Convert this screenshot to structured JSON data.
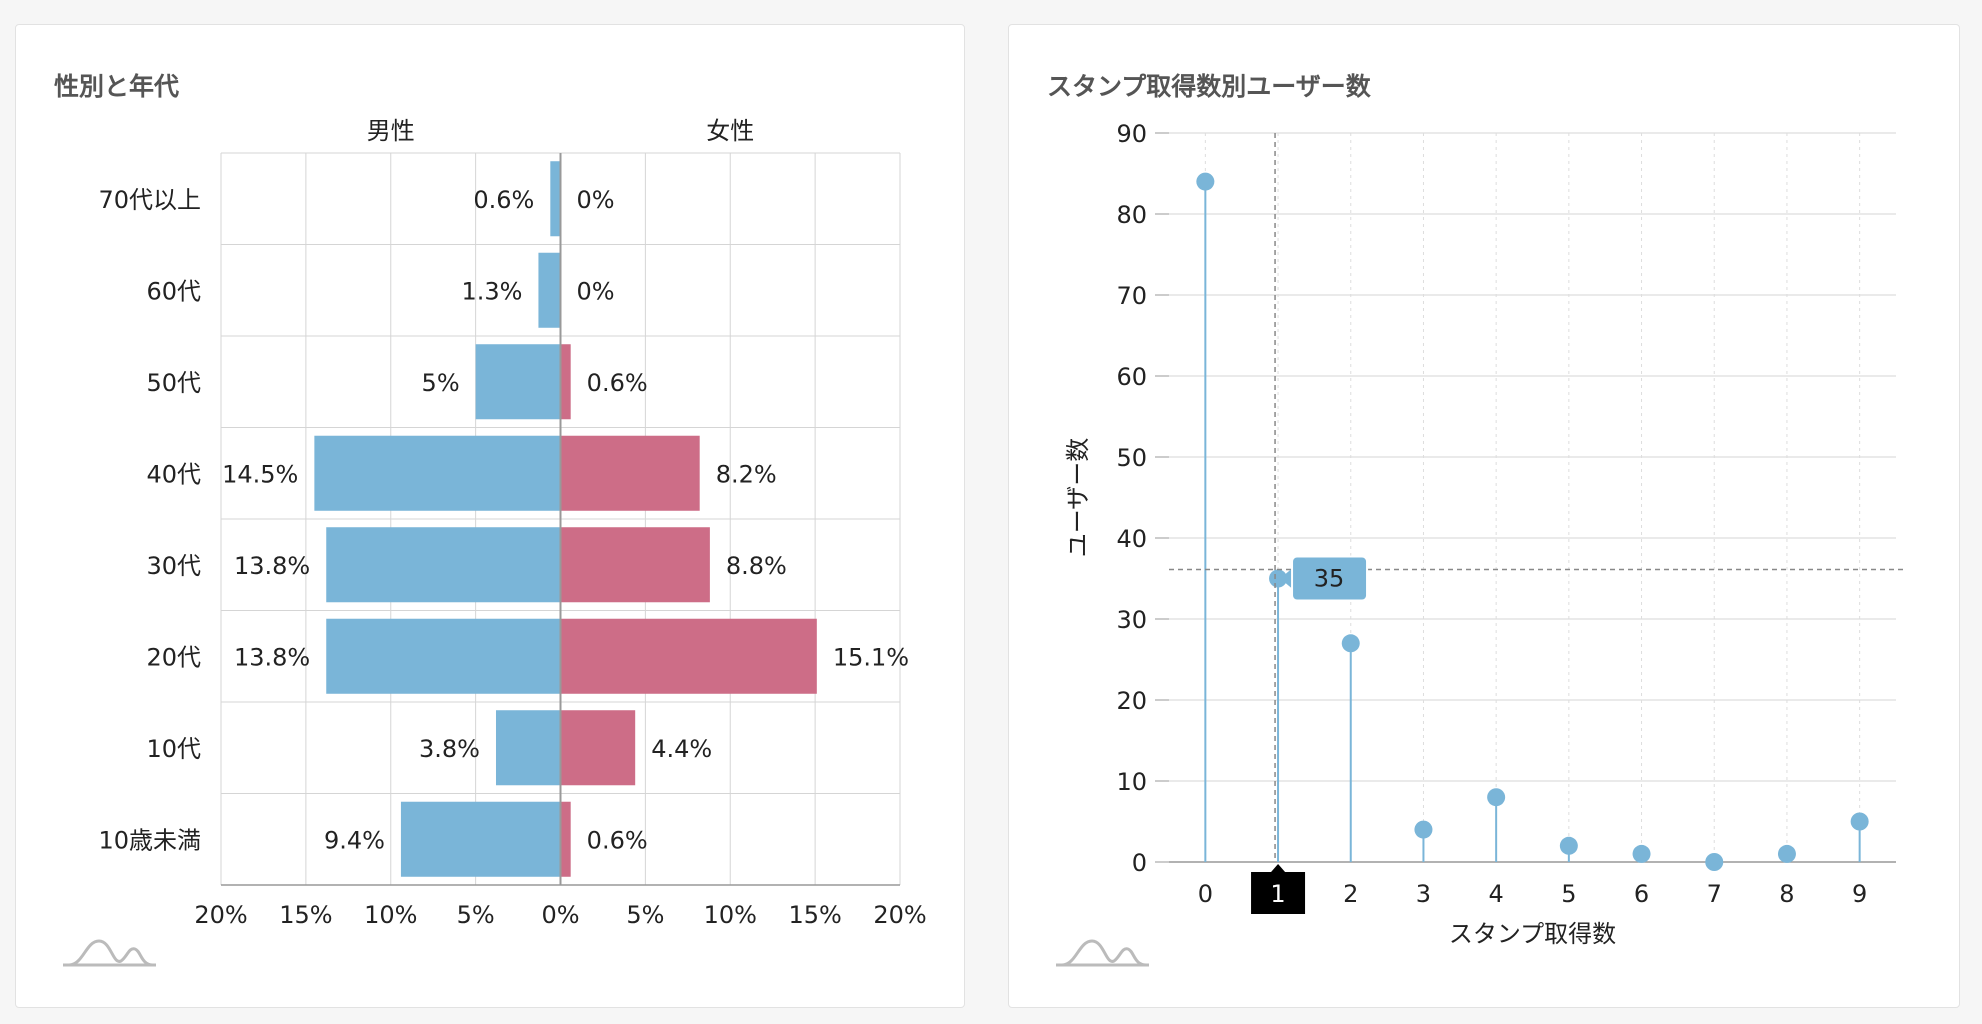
{
  "panels": {
    "left_title": "性別と年代",
    "right_title": "スタンプ取得数別ユーザー数"
  },
  "colors": {
    "male": "#7ab5d8",
    "female": "#cd6d87",
    "stem": "#7ab5d8",
    "tooltip_bg": "#7ab5d8",
    "grid": "#d5d5d5"
  },
  "chart_data": [
    {
      "type": "bar",
      "orientation": "horizontal-pyramid",
      "title": "性別と年代",
      "categories": [
        "70代以上",
        "60代",
        "50代",
        "40代",
        "30代",
        "20代",
        "10代",
        "10歳未満"
      ],
      "series": [
        {
          "name": "男性",
          "values": [
            0.6,
            1.3,
            5,
            14.5,
            13.8,
            13.8,
            3.8,
            9.4
          ],
          "labels": [
            "0.6%",
            "1.3%",
            "5%",
            "14.5%",
            "13.8%",
            "13.8%",
            "3.8%",
            "9.4%"
          ]
        },
        {
          "name": "女性",
          "values": [
            0,
            0,
            0.6,
            8.2,
            8.8,
            15.1,
            4.4,
            0.6
          ],
          "labels": [
            "0%",
            "0%",
            "0.6%",
            "8.2%",
            "8.8%",
            "15.1%",
            "4.4%",
            "0.6%"
          ]
        }
      ],
      "xlim": [
        -20,
        20
      ],
      "xticks": [
        "20%",
        "15%",
        "10%",
        "5%",
        "0%",
        "5%",
        "10%",
        "15%",
        "20%"
      ],
      "grid": true
    },
    {
      "type": "lollipop",
      "title": "スタンプ取得数別ユーザー数",
      "x": [
        0,
        1,
        2,
        3,
        4,
        5,
        6,
        7,
        8,
        9
      ],
      "values": [
        84,
        35,
        27,
        4,
        8,
        2,
        1,
        0,
        1,
        5
      ],
      "xlabel": "スタンプ取得数",
      "ylabel": "ユーザー数",
      "ylim": [
        0,
        90
      ],
      "yticks": [
        "0",
        "10",
        "20",
        "30",
        "40",
        "50",
        "60",
        "70",
        "80",
        "90"
      ],
      "xticks": [
        "0",
        "1",
        "2",
        "3",
        "4",
        "5",
        "6",
        "7",
        "8",
        "9"
      ],
      "grid": true,
      "tooltip": {
        "x_index": 1,
        "label": "35"
      }
    }
  ]
}
